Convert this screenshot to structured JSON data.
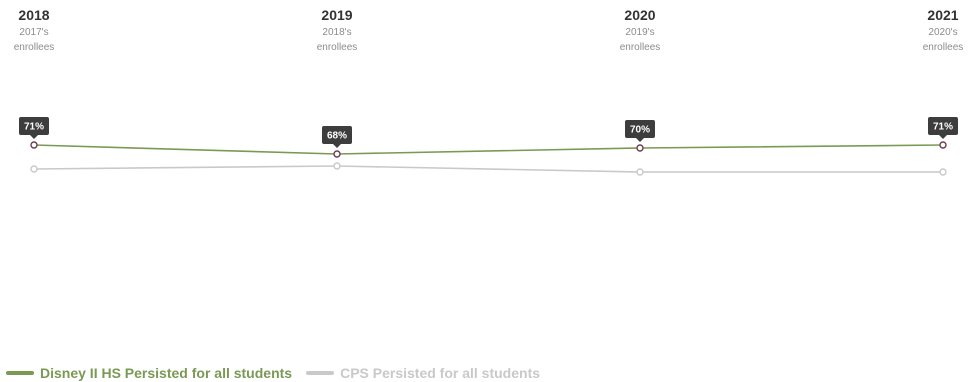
{
  "colors": {
    "school": "#7a9a54",
    "district": "#c9c9c9",
    "marker": "#6b3c4f",
    "label_bg": "#3d3d3d"
  },
  "chart_data": {
    "type": "line",
    "x": [
      {
        "year": "2018",
        "cohort": "2017's",
        "cohort_suffix": "enrollees"
      },
      {
        "year": "2019",
        "cohort": "2018's",
        "cohort_suffix": "enrollees"
      },
      {
        "year": "2020",
        "cohort": "2019's",
        "cohort_suffix": "enrollees"
      },
      {
        "year": "2021",
        "cohort": "2020's",
        "cohort_suffix": "enrollees"
      }
    ],
    "ylim": [
      0,
      100
    ],
    "y_axis_visible": false,
    "grid": false,
    "legend_position": "bottom-left",
    "series": [
      {
        "name": "Disney II HS Persisted for all students",
        "values": [
          71,
          68,
          70,
          71
        ],
        "labels": [
          "71%",
          "68%",
          "70%",
          "71%"
        ]
      },
      {
        "name": "CPS Persisted for all students",
        "values": [
          63,
          64,
          62,
          62
        ]
      }
    ]
  }
}
